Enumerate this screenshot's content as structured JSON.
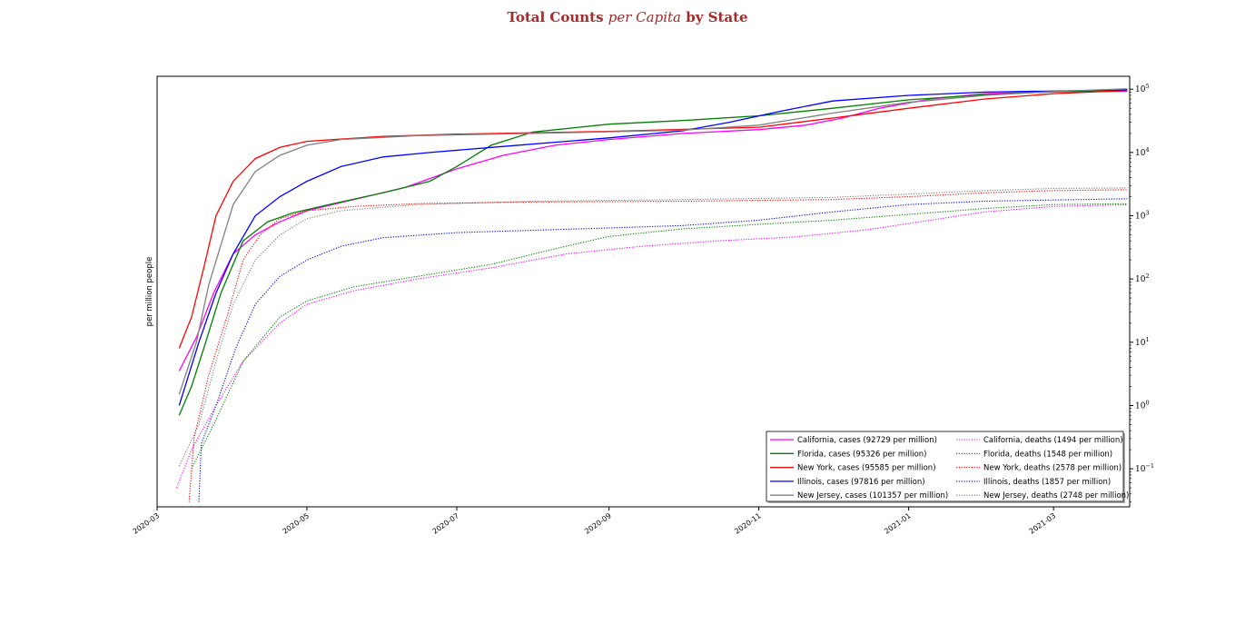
{
  "title": {
    "part1": "Total Counts ",
    "part2": "per Capita",
    "part3": " by State"
  },
  "chart_data": {
    "type": "line",
    "title": "Total Counts per Capita by State",
    "ylabel": "per million people",
    "xlabel": "",
    "yscale": "log",
    "yaxis_position": "right",
    "xlim": [
      "2020-03-01",
      "2021-04-01"
    ],
    "ylim": [
      0.025,
      160000
    ],
    "x_ticks": [
      "2020-03",
      "2020-05",
      "2020-07",
      "2020-09",
      "2020-11",
      "2021-01",
      "2021-03"
    ],
    "y_ticks": [
      {
        "value": 0.1,
        "base": "10",
        "exp": "−1"
      },
      {
        "value": 1,
        "base": "10",
        "exp": "0"
      },
      {
        "value": 10,
        "base": "10",
        "exp": "1"
      },
      {
        "value": 100,
        "base": "10",
        "exp": "2"
      },
      {
        "value": 1000,
        "base": "10",
        "exp": "3"
      },
      {
        "value": 10000,
        "base": "10",
        "exp": "4"
      },
      {
        "value": 100000,
        "base": "10",
        "exp": "5"
      }
    ],
    "grid": false,
    "legend_position": "lower-right",
    "series": [
      {
        "name": "California, cases (92729 per million)",
        "color": "#ff00ff",
        "style": "solid",
        "points": [
          [
            "2020-03-10",
            3.5
          ],
          [
            "2020-03-17",
            12
          ],
          [
            "2020-03-24",
            60
          ],
          [
            "2020-04-01",
            250
          ],
          [
            "2020-04-10",
            500
          ],
          [
            "2020-04-20",
            800
          ],
          [
            "2020-05-01",
            1200
          ],
          [
            "2020-05-20",
            1800
          ],
          [
            "2020-06-10",
            2800
          ],
          [
            "2020-07-01",
            5500
          ],
          [
            "2020-07-20",
            9000
          ],
          [
            "2020-08-10",
            13000
          ],
          [
            "2020-09-01",
            16000
          ],
          [
            "2020-10-01",
            20000
          ],
          [
            "2020-11-01",
            23000
          ],
          [
            "2020-11-20",
            27000
          ],
          [
            "2020-12-05",
            35000
          ],
          [
            "2020-12-20",
            50000
          ],
          [
            "2021-01-10",
            70000
          ],
          [
            "2021-02-01",
            85000
          ],
          [
            "2021-03-01",
            91000
          ],
          [
            "2021-03-31",
            92729
          ]
        ]
      },
      {
        "name": "Florida, cases (95326 per million)",
        "color": "#008000",
        "style": "solid",
        "points": [
          [
            "2020-03-10",
            0.7
          ],
          [
            "2020-03-15",
            2
          ],
          [
            "2020-03-20",
            8
          ],
          [
            "2020-03-27",
            60
          ],
          [
            "2020-04-05",
            400
          ],
          [
            "2020-04-15",
            800
          ],
          [
            "2020-04-25",
            1100
          ],
          [
            "2020-05-10",
            1500
          ],
          [
            "2020-06-01",
            2300
          ],
          [
            "2020-06-20",
            3500
          ],
          [
            "2020-07-01",
            6000
          ],
          [
            "2020-07-15",
            13000
          ],
          [
            "2020-08-01",
            21000
          ],
          [
            "2020-09-01",
            28000
          ],
          [
            "2020-10-01",
            32000
          ],
          [
            "2020-11-01",
            38000
          ],
          [
            "2020-12-01",
            50000
          ],
          [
            "2021-01-01",
            68000
          ],
          [
            "2021-02-01",
            82000
          ],
          [
            "2021-03-01",
            91000
          ],
          [
            "2021-03-31",
            95326
          ]
        ]
      },
      {
        "name": "New York, cases (95585 per million)",
        "color": "#ff0000",
        "style": "solid",
        "points": [
          [
            "2020-03-10",
            8
          ],
          [
            "2020-03-15",
            25
          ],
          [
            "2020-03-20",
            150
          ],
          [
            "2020-03-25",
            1000
          ],
          [
            "2020-04-01",
            3500
          ],
          [
            "2020-04-10",
            8000
          ],
          [
            "2020-04-20",
            12000
          ],
          [
            "2020-05-01",
            15000
          ],
          [
            "2020-06-01",
            18000
          ],
          [
            "2020-07-01",
            19500
          ],
          [
            "2020-09-01",
            21500
          ],
          [
            "2020-11-01",
            25000
          ],
          [
            "2020-12-01",
            35000
          ],
          [
            "2021-01-01",
            50000
          ],
          [
            "2021-02-01",
            70000
          ],
          [
            "2021-03-01",
            85000
          ],
          [
            "2021-03-31",
            95585
          ]
        ]
      },
      {
        "name": "Illinois, cases (97816 per million)",
        "color": "#0000ff",
        "style": "solid",
        "points": [
          [
            "2020-03-10",
            1
          ],
          [
            "2020-03-18",
            10
          ],
          [
            "2020-03-25",
            60
          ],
          [
            "2020-04-01",
            250
          ],
          [
            "2020-04-10",
            1000
          ],
          [
            "2020-04-20",
            2000
          ],
          [
            "2020-05-01",
            3500
          ],
          [
            "2020-05-15",
            6000
          ],
          [
            "2020-06-01",
            8500
          ],
          [
            "2020-06-20",
            10000
          ],
          [
            "2020-07-15",
            12000
          ],
          [
            "2020-09-01",
            17000
          ],
          [
            "2020-10-01",
            22000
          ],
          [
            "2020-10-20",
            30000
          ],
          [
            "2020-11-10",
            45000
          ],
          [
            "2020-12-01",
            65000
          ],
          [
            "2021-01-01",
            80000
          ],
          [
            "2021-02-01",
            90000
          ],
          [
            "2021-03-31",
            97816
          ]
        ]
      },
      {
        "name": "New Jersey, cases (101357 per million)",
        "color": "#808080",
        "style": "solid",
        "points": [
          [
            "2020-03-10",
            1.5
          ],
          [
            "2020-03-17",
            10
          ],
          [
            "2020-03-22",
            80
          ],
          [
            "2020-04-01",
            1500
          ],
          [
            "2020-04-10",
            5000
          ],
          [
            "2020-04-20",
            9000
          ],
          [
            "2020-05-01",
            13000
          ],
          [
            "2020-05-15",
            16000
          ],
          [
            "2020-06-15",
            18500
          ],
          [
            "2020-08-01",
            20000
          ],
          [
            "2020-10-01",
            22500
          ],
          [
            "2020-11-01",
            27000
          ],
          [
            "2020-12-01",
            42000
          ],
          [
            "2021-01-01",
            62000
          ],
          [
            "2021-02-01",
            80000
          ],
          [
            "2021-03-01",
            92000
          ],
          [
            "2021-03-31",
            101357
          ]
        ]
      },
      {
        "name": "California, deaths (1494 per million)",
        "color": "#ff00ff",
        "style": "dotted",
        "points": [
          [
            "2020-03-09",
            0.05
          ],
          [
            "2020-03-15",
            0.2
          ],
          [
            "2020-03-25",
            1
          ],
          [
            "2020-04-05",
            5
          ],
          [
            "2020-04-20",
            20
          ],
          [
            "2020-05-01",
            40
          ],
          [
            "2020-05-20",
            65
          ],
          [
            "2020-06-15",
            100
          ],
          [
            "2020-07-15",
            150
          ],
          [
            "2020-08-15",
            250
          ],
          [
            "2020-09-15",
            330
          ],
          [
            "2020-10-15",
            400
          ],
          [
            "2020-11-15",
            460
          ],
          [
            "2020-12-15",
            600
          ],
          [
            "2021-01-10",
            850
          ],
          [
            "2021-02-01",
            1150
          ],
          [
            "2021-03-01",
            1400
          ],
          [
            "2021-03-31",
            1494
          ]
        ]
      },
      {
        "name": "Florida, deaths (1548 per million)",
        "color": "#008000",
        "style": "dotted",
        "points": [
          [
            "2020-03-15",
            0.1
          ],
          [
            "2020-03-25",
            0.6
          ],
          [
            "2020-04-05",
            5
          ],
          [
            "2020-04-20",
            25
          ],
          [
            "2020-05-01",
            45
          ],
          [
            "2020-05-20",
            75
          ],
          [
            "2020-06-15",
            110
          ],
          [
            "2020-07-15",
            170
          ],
          [
            "2020-08-10",
            300
          ],
          [
            "2020-09-01",
            470
          ],
          [
            "2020-10-01",
            620
          ],
          [
            "2020-11-01",
            730
          ],
          [
            "2020-12-01",
            850
          ],
          [
            "2021-01-01",
            1050
          ],
          [
            "2021-02-01",
            1300
          ],
          [
            "2021-03-01",
            1500
          ],
          [
            "2021-03-31",
            1548
          ]
        ]
      },
      {
        "name": "New York, deaths (2578 per million)",
        "color": "#ff0000",
        "style": "dotted",
        "points": [
          [
            "2020-03-14",
            0.03
          ],
          [
            "2020-03-16",
            0.3
          ],
          [
            "2020-03-22",
            3
          ],
          [
            "2020-03-30",
            30
          ],
          [
            "2020-04-05",
            200
          ],
          [
            "2020-04-12",
            500
          ],
          [
            "2020-04-20",
            900
          ],
          [
            "2020-05-01",
            1200
          ],
          [
            "2020-05-20",
            1400
          ],
          [
            "2020-06-15",
            1550
          ],
          [
            "2020-08-01",
            1650
          ],
          [
            "2020-10-01",
            1700
          ],
          [
            "2020-12-01",
            1800
          ],
          [
            "2021-01-01",
            2000
          ],
          [
            "2021-02-01",
            2300
          ],
          [
            "2021-03-01",
            2500
          ],
          [
            "2021-03-31",
            2578
          ]
        ]
      },
      {
        "name": "Illinois, deaths (1857 per million)",
        "color": "#0000ff",
        "style": "dotted",
        "points": [
          [
            "2020-03-18",
            0.03
          ],
          [
            "2020-03-19",
            0.25
          ],
          [
            "2020-03-25",
            1
          ],
          [
            "2020-04-02",
            8
          ],
          [
            "2020-04-10",
            40
          ],
          [
            "2020-04-20",
            110
          ],
          [
            "2020-05-01",
            200
          ],
          [
            "2020-05-15",
            330
          ],
          [
            "2020-06-01",
            450
          ],
          [
            "2020-07-01",
            540
          ],
          [
            "2020-08-01",
            590
          ],
          [
            "2020-09-01",
            640
          ],
          [
            "2020-10-01",
            700
          ],
          [
            "2020-11-01",
            850
          ],
          [
            "2020-12-01",
            1150
          ],
          [
            "2021-01-01",
            1500
          ],
          [
            "2021-02-01",
            1700
          ],
          [
            "2021-03-31",
            1857
          ]
        ]
      },
      {
        "name": "New Jersey, deaths (2748 per million)",
        "color": "#808080",
        "style": "dotted",
        "points": [
          [
            "2020-03-10",
            0.11
          ],
          [
            "2020-03-18",
            0.5
          ],
          [
            "2020-03-25",
            5
          ],
          [
            "2020-04-01",
            40
          ],
          [
            "2020-04-10",
            200
          ],
          [
            "2020-04-20",
            500
          ],
          [
            "2020-05-01",
            900
          ],
          [
            "2020-05-15",
            1200
          ],
          [
            "2020-06-15",
            1500
          ],
          [
            "2020-08-01",
            1700
          ],
          [
            "2020-10-01",
            1800
          ],
          [
            "2020-12-01",
            1950
          ],
          [
            "2021-01-01",
            2200
          ],
          [
            "2021-02-01",
            2500
          ],
          [
            "2021-03-01",
            2700
          ],
          [
            "2021-03-31",
            2748
          ]
        ]
      }
    ]
  }
}
